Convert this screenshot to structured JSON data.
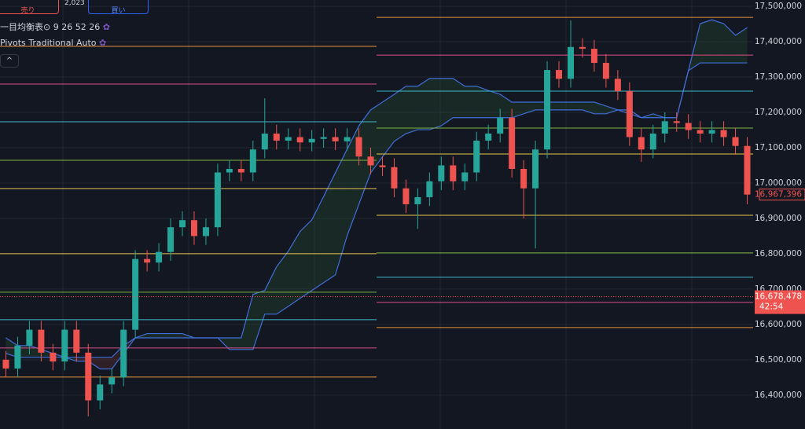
{
  "chart_data": {
    "type": "candlestick",
    "header": {
      "sell_label": "売り",
      "spread": "2,023",
      "buy_label": "買い",
      "indicator_1": "一目均衡表⊙ 9 26 52 26",
      "indicator_2": "Pivots Traditional Auto"
    },
    "up_color": "#26a69a",
    "down_color": "#ef5350",
    "open": [
      16500000,
      16475000,
      16540000,
      16585000,
      16520000,
      16495000,
      16585000,
      16520000,
      16385000,
      16430000,
      16450000,
      16585000,
      16785000,
      16775000,
      16805000,
      16875000,
      16895000,
      16850000,
      16875000,
      17030000,
      17040000,
      17030000,
      17095000,
      17140000,
      17120000,
      17130000,
      17115000,
      17125000,
      17130000,
      17118000,
      17130000,
      17075000,
      17050000,
      17045000,
      16985000,
      16940000,
      16960000,
      17005000,
      17050000,
      17005000,
      17030000,
      17120000,
      17140000,
      17185000,
      17040000,
      16985000,
      17095000,
      17320000,
      17295000,
      17385000,
      17380000,
      17340000,
      17295000,
      17260000,
      17130000,
      17095000,
      17140000,
      17175000,
      17170000,
      17150000,
      17140000,
      17150000,
      17130000,
      17105000
    ],
    "high": [
      16525000,
      16565000,
      16610000,
      16610000,
      16545000,
      16610000,
      16610000,
      16545000,
      16455000,
      16475000,
      16610000,
      16810000,
      16810000,
      16830000,
      16900000,
      16920000,
      16920000,
      16900000,
      17055000,
      17065000,
      17065000,
      17120000,
      17240000,
      17165000,
      17155000,
      17155000,
      17150000,
      17155000,
      17155000,
      17155000,
      17155000,
      17100000,
      17075000,
      17070000,
      17010000,
      16985000,
      17030000,
      17075000,
      17075000,
      17055000,
      17145000,
      17165000,
      17210000,
      17210000,
      17065000,
      17120000,
      17345000,
      17345000,
      17460000,
      17410000,
      17405000,
      17365000,
      17320000,
      17285000,
      17155000,
      17165000,
      17200000,
      17200000,
      17195000,
      17175000,
      17175000,
      17175000,
      17155000,
      17130000
    ],
    "low": [
      16450000,
      16450000,
      16515000,
      16495000,
      16470000,
      16470000,
      16495000,
      16340000,
      16360000,
      16405000,
      16425000,
      16560000,
      16750000,
      16750000,
      16780000,
      16850000,
      16825000,
      16825000,
      16850000,
      17005000,
      17005000,
      17005000,
      17070000,
      17095000,
      17095000,
      17090000,
      17090000,
      17100000,
      17093000,
      17093000,
      17050000,
      17025000,
      17020000,
      16960000,
      16915000,
      16870000,
      16935000,
      16980000,
      16980000,
      16980000,
      17005000,
      17095000,
      17115000,
      17015000,
      16900000,
      16815000,
      17070000,
      17270000,
      17270000,
      17355000,
      17315000,
      17270000,
      17235000,
      17105000,
      17060000,
      17070000,
      17115000,
      17145000,
      17125000,
      17115000,
      17115000,
      17105000,
      17080000,
      16940000
    ],
    "close": [
      16475000,
      16540000,
      16585000,
      16520000,
      16495000,
      16585000,
      16520000,
      16385000,
      16430000,
      16450000,
      16585000,
      16785000,
      16775000,
      16805000,
      16875000,
      16895000,
      16850000,
      16875000,
      17030000,
      17040000,
      17030000,
      17095000,
      17140000,
      17120000,
      17130000,
      17115000,
      17125000,
      17130000,
      17118000,
      17130000,
      17075000,
      17050000,
      17045000,
      16985000,
      16940000,
      16960000,
      17005000,
      17050000,
      17005000,
      17030000,
      17120000,
      17140000,
      17185000,
      17040000,
      16985000,
      17095000,
      17320000,
      17295000,
      17385000,
      17380000,
      17340000,
      17295000,
      17260000,
      17130000,
      17095000,
      17140000,
      17175000,
      17170000,
      17150000,
      17140000,
      17150000,
      17130000,
      17105000,
      16967396
    ],
    "ichimoku": {
      "line_color": "#3f6fd8",
      "span_a": [
        16562000,
        16540000,
        16540000,
        16529000,
        16518000,
        16507000,
        16496000,
        16496000,
        16474000,
        16474000,
        16518000,
        16562000,
        16574000,
        16574000,
        16574000,
        16574000,
        16562000,
        16562000,
        16562000,
        16562000,
        16562000,
        16685000,
        16696000,
        16763000,
        16807000,
        16863000,
        16896000,
        16962000,
        17029000,
        17096000,
        17162000,
        17207000,
        17229000,
        17251000,
        17274000,
        17274000,
        17296000,
        17296000,
        17296000,
        17274000,
        17274000,
        17262000,
        17251000,
        17229000,
        17229000,
        17229000,
        17229000,
        17229000,
        17229000,
        17229000,
        17229000,
        17218000,
        17207000,
        17196000,
        17185000,
        17196000,
        17185000,
        17185000,
        17318000,
        17451000,
        17462000,
        17451000,
        17418000,
        17440000
      ],
      "span_b": [
        16518000,
        16507000,
        16507000,
        16507000,
        16507000,
        16507000,
        16507000,
        16507000,
        16507000,
        16507000,
        16540000,
        16562000,
        16562000,
        16562000,
        16562000,
        16562000,
        16562000,
        16562000,
        16562000,
        16529000,
        16529000,
        16529000,
        16629000,
        16629000,
        16651000,
        16674000,
        16696000,
        16718000,
        16740000,
        16851000,
        16940000,
        17029000,
        17074000,
        17118000,
        17140000,
        17151000,
        17151000,
        17162000,
        17185000,
        17185000,
        17185000,
        17185000,
        17185000,
        17185000,
        17196000,
        17207000,
        17207000,
        17207000,
        17207000,
        17207000,
        17196000,
        17196000,
        17207000,
        17207000,
        17185000,
        17185000,
        17185000,
        17185000,
        17318000,
        17340000,
        17340000,
        17340000,
        17340000,
        17340000
      ]
    },
    "pivots": {
      "colors": [
        "#e8923a",
        "#d94f86",
        "#3fb7c9",
        "#7cb342",
        "#e6c84a",
        "#e6c84a",
        "#7cb342",
        "#3fb7c9",
        "#d94f86",
        "#e8923a"
      ],
      "periods": [
        {
          "levels": [
            17386700,
            17280000,
            17173300,
            17064400,
            16984400,
            16800000,
            16691100,
            16613300,
            16533300,
            16451100
          ]
        },
        {
          "levels": [
            17468900,
            17362200,
            17260000,
            17155600,
            17082200,
            16908900,
            16802200,
            16733300,
            16662200,
            16591100
          ]
        }
      ]
    },
    "price_labels": [
      {
        "value": 16967396,
        "label": "16,967,396"
      },
      {
        "value": 16678478,
        "label": "16,678,478",
        "countdown": "42:54"
      }
    ],
    "ylim": [
      16304000,
      17518000
    ],
    "yticks": [
      {
        "value": 16400000,
        "label": "16,400,000"
      },
      {
        "value": 16500000,
        "label": "16,500,000"
      },
      {
        "value": 16600000,
        "label": "16,600,000"
      },
      {
        "value": 16700000,
        "label": "16,700,000"
      },
      {
        "value": 16800000,
        "label": "16,800,000"
      },
      {
        "value": 16900000,
        "label": "16,900,000"
      },
      {
        "value": 17000000,
        "label": "17,000,000"
      },
      {
        "value": 17100000,
        "label": "17,100,000"
      },
      {
        "value": 17200000,
        "label": "17,200,000"
      },
      {
        "value": 17300000,
        "label": "17,300,000"
      },
      {
        "value": 17400000,
        "label": "17,400,000"
      },
      {
        "value": 17500000,
        "label": "17,500,000"
      }
    ],
    "grid": true
  }
}
